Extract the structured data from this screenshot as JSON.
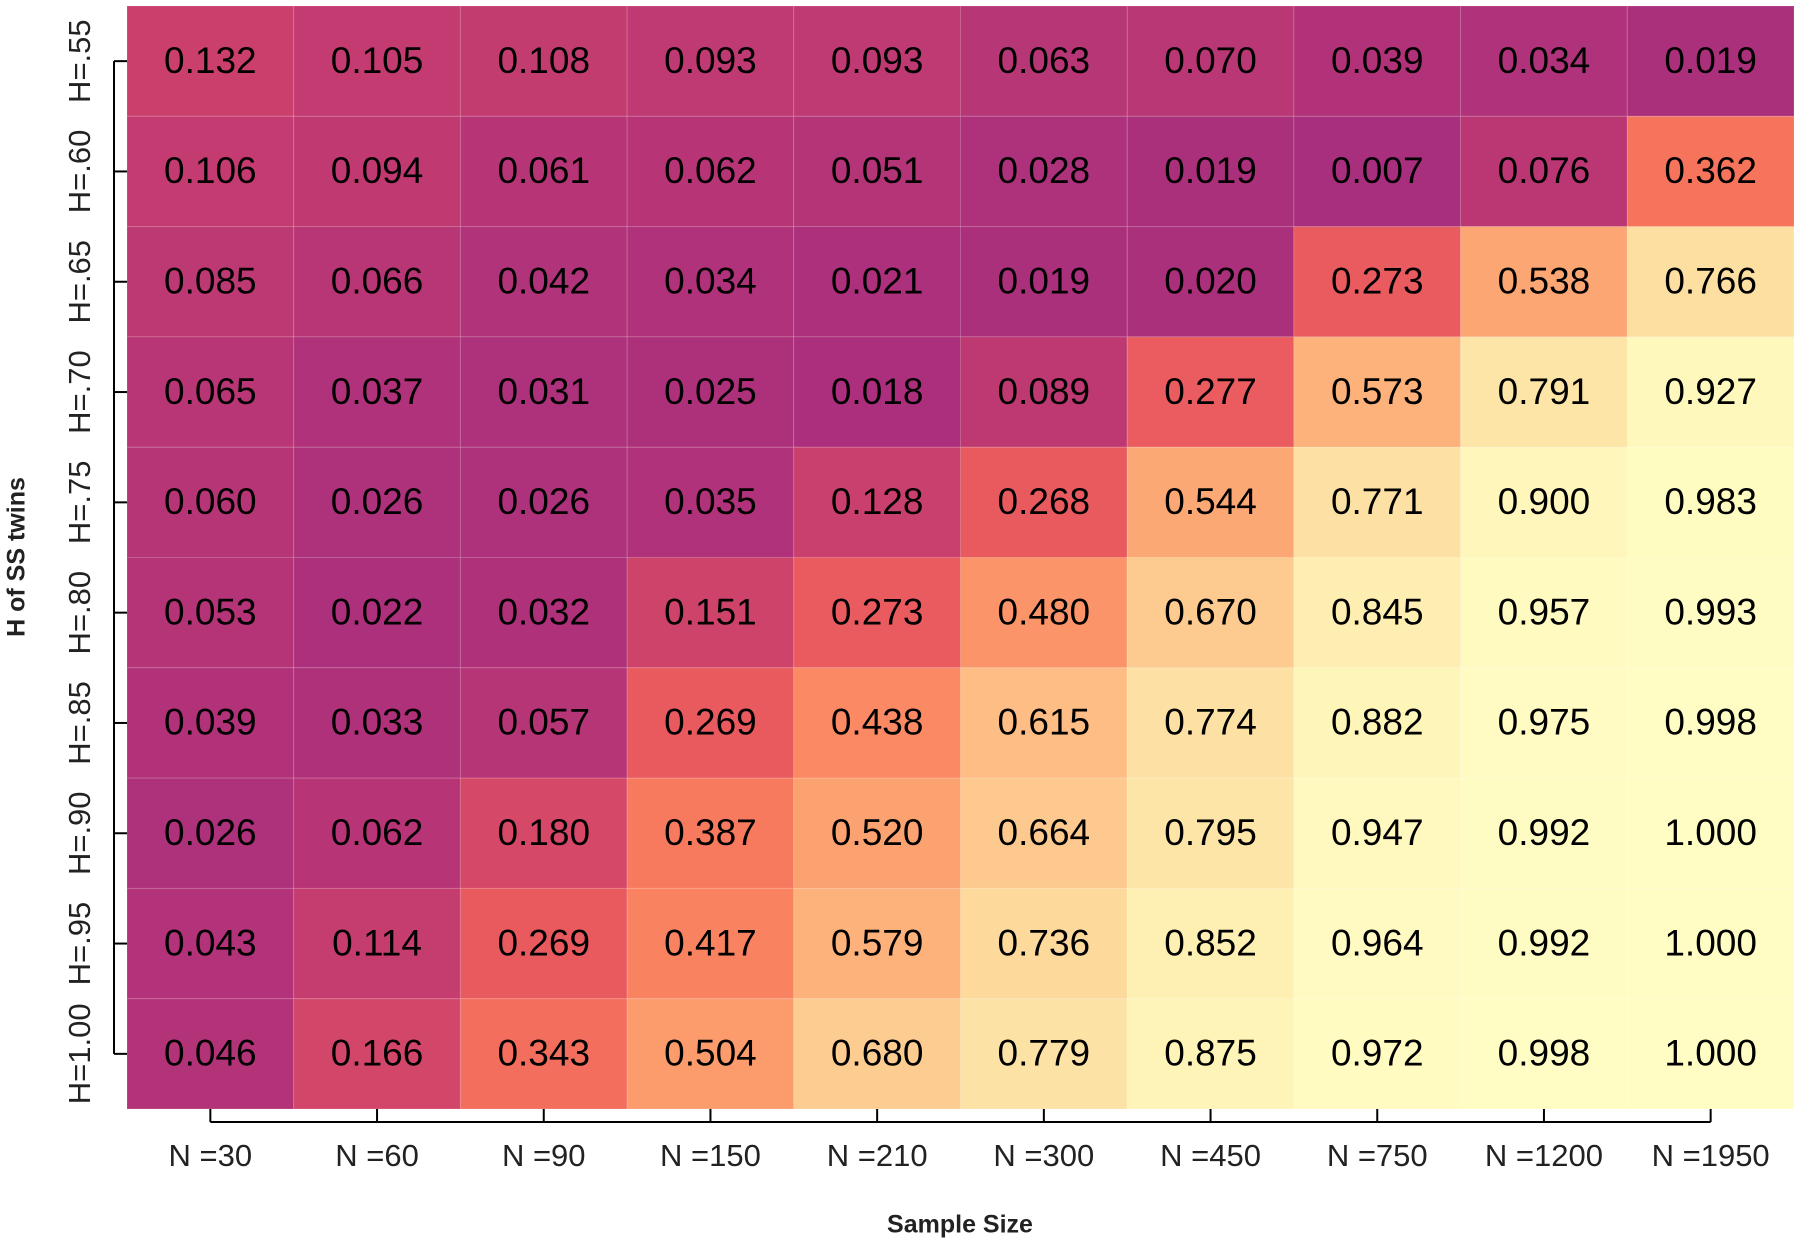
{
  "chart_data": {
    "type": "heatmap",
    "xlabel": "Sample Size",
    "ylabel": "H of SS twins",
    "x_categories": [
      "N =30",
      "N =60",
      "N =90",
      "N =150",
      "N =210",
      "N =300",
      "N =450",
      "N =750",
      "N =1200",
      "N =1950"
    ],
    "y_categories": [
      "H=.55",
      "H=.60",
      "H=.65",
      "H=.70",
      "H=.75",
      "H=.80",
      "H=.85",
      "H=.90",
      "H=.95",
      "H=1.00"
    ],
    "values": [
      [
        0.132,
        0.105,
        0.108,
        0.093,
        0.093,
        0.063,
        0.07,
        0.039,
        0.034,
        0.019
      ],
      [
        0.106,
        0.094,
        0.061,
        0.062,
        0.051,
        0.028,
        0.019,
        0.007,
        0.076,
        0.362
      ],
      [
        0.085,
        0.066,
        0.042,
        0.034,
        0.021,
        0.019,
        0.02,
        0.273,
        0.538,
        0.766
      ],
      [
        0.065,
        0.037,
        0.031,
        0.025,
        0.018,
        0.089,
        0.277,
        0.573,
        0.791,
        0.927
      ],
      [
        0.06,
        0.026,
        0.026,
        0.035,
        0.128,
        0.268,
        0.544,
        0.771,
        0.9,
        0.983
      ],
      [
        0.053,
        0.022,
        0.032,
        0.151,
        0.273,
        0.48,
        0.67,
        0.845,
        0.957,
        0.993
      ],
      [
        0.039,
        0.033,
        0.057,
        0.269,
        0.438,
        0.615,
        0.774,
        0.882,
        0.975,
        0.998
      ],
      [
        0.026,
        0.062,
        0.18,
        0.387,
        0.52,
        0.664,
        0.795,
        0.947,
        0.992,
        1.0
      ],
      [
        0.043,
        0.114,
        0.269,
        0.417,
        0.579,
        0.736,
        0.852,
        0.964,
        0.992,
        1.0
      ],
      [
        0.046,
        0.166,
        0.343,
        0.504,
        0.68,
        0.779,
        0.875,
        0.972,
        0.998,
        1.0
      ]
    ],
    "value_labels": [
      [
        "0.132",
        "0.105",
        "0.108",
        "0.093",
        "0.093",
        "0.063",
        "0.070",
        "0.039",
        "0.034",
        "0.019"
      ],
      [
        "0.106",
        "0.094",
        "0.061",
        "0.062",
        "0.051",
        "0.028",
        "0.019",
        "0.007",
        "0.076",
        "0.362"
      ],
      [
        "0.085",
        "0.066",
        "0.042",
        "0.034",
        "0.021",
        "0.019",
        "0.020",
        "0.273",
        "0.538",
        "0.766"
      ],
      [
        "0.065",
        "0.037",
        "0.031",
        "0.025",
        "0.018",
        "0.089",
        "0.277",
        "0.573",
        "0.791",
        "0.927"
      ],
      [
        "0.060",
        "0.026",
        "0.026",
        "0.035",
        "0.128",
        "0.268",
        "0.544",
        "0.771",
        "0.900",
        "0.983"
      ],
      [
        "0.053",
        "0.022",
        "0.032",
        "0.151",
        "0.273",
        "0.480",
        "0.670",
        "0.845",
        "0.957",
        "0.993"
      ],
      [
        "0.039",
        "0.033",
        "0.057",
        "0.269",
        "0.438",
        "0.615",
        "0.774",
        "0.882",
        "0.975",
        "0.998"
      ],
      [
        "0.026",
        "0.062",
        "0.180",
        "0.387",
        "0.520",
        "0.664",
        "0.795",
        "0.947",
        "0.992",
        "1.000"
      ],
      [
        "0.043",
        "0.114",
        "0.269",
        "0.417",
        "0.579",
        "0.736",
        "0.852",
        "0.964",
        "0.992",
        "1.000"
      ],
      [
        "0.046",
        "0.166",
        "0.343",
        "0.504",
        "0.680",
        "0.779",
        "0.875",
        "0.972",
        "0.998",
        "1.000"
      ]
    ],
    "zlim": [
      0,
      1
    ],
    "colormap": [
      "#a62d7f",
      "#c83e6d",
      "#e65560",
      "#f8765c",
      "#fc9b6c",
      "#fdc086",
      "#fddc9f",
      "#fef4b8",
      "#fffdc4"
    ]
  }
}
